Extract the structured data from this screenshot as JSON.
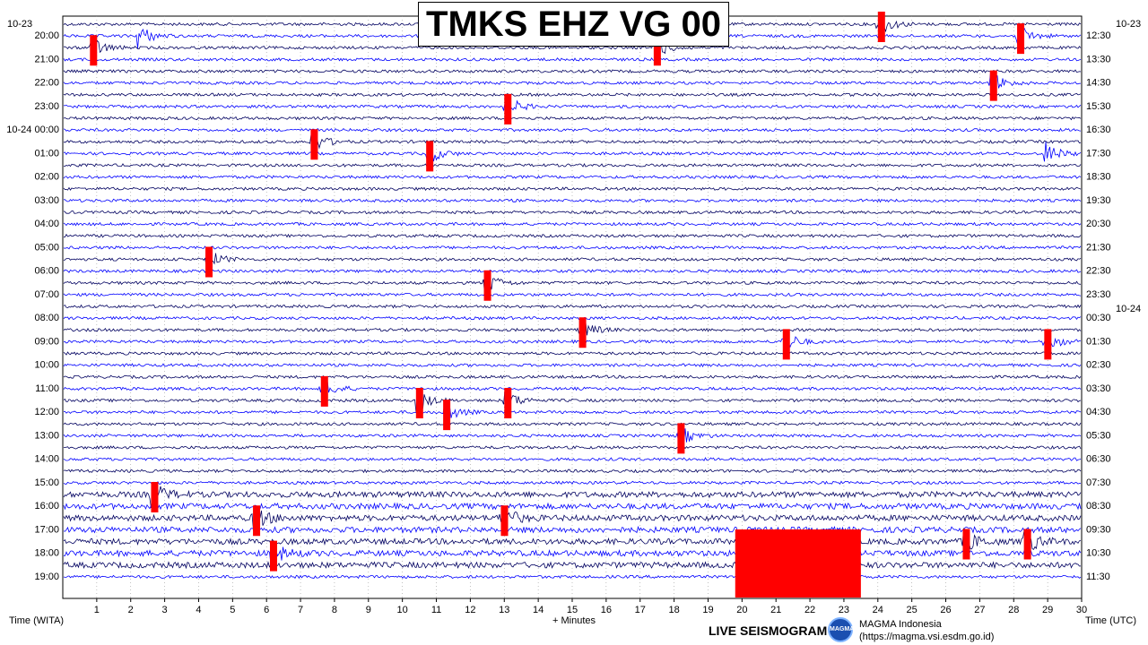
{
  "title": "TMKS EHZ VG 00",
  "left_axis_label": "Time (WITA)",
  "right_axis_label": "Time (UTC)",
  "bottom_axis_label": "+ Minutes",
  "footer": {
    "brand": "LIVE SEISMOGRAM",
    "logo_text": "MAGMA",
    "org": "MAGMA Indonesia",
    "url": "(https://magma.vsi.esdm.go.id)"
  },
  "colors": {
    "trace_a": "#000060",
    "trace_b": "#0000ff",
    "clip": "#ff0000"
  },
  "chart_data": {
    "type": "seismogram",
    "x_ticks": [
      1,
      2,
      3,
      4,
      5,
      6,
      7,
      8,
      9,
      10,
      11,
      12,
      13,
      14,
      15,
      16,
      17,
      18,
      19,
      20,
      21,
      22,
      23,
      24,
      25,
      26,
      27,
      28,
      29,
      30
    ],
    "xlim": [
      0,
      30
    ],
    "left_date_start": "10-23",
    "left_date_mid_label": "10-24 00:00",
    "left_hour_labels": [
      "20:00",
      "21:00",
      "22:00",
      "23:00",
      "10-24 00:00",
      "01:00",
      "02:00",
      "03:00",
      "04:00",
      "05:00",
      "06:00",
      "07:00",
      "08:00",
      "09:00",
      "10:00",
      "11:00",
      "12:00",
      "13:00",
      "14:00",
      "15:00",
      "16:00",
      "17:00",
      "18:00",
      "19:00"
    ],
    "right_date_start": "10-23",
    "right_date_mid": "10-24",
    "right_hour_labels": [
      "12:30",
      "13:30",
      "14:30",
      "15:30",
      "16:30",
      "17:30",
      "18:30",
      "19:30",
      "20:30",
      "21:30",
      "22:30",
      "23:30",
      "00:30",
      "01:30",
      "02:30",
      "03:30",
      "04:30",
      "05:30",
      "06:30",
      "07:30",
      "08:30",
      "09:30",
      "10:30",
      "11:30"
    ],
    "events": [
      {
        "row": 2,
        "minute": 0.8,
        "clipped": true
      },
      {
        "row": 1,
        "minute": 2.2,
        "clipped": false
      },
      {
        "row": 10,
        "minute": 7.3,
        "clipped": true
      },
      {
        "row": 11,
        "minute": 10.7,
        "clipped": true
      },
      {
        "row": 7,
        "minute": 13.0,
        "clipped": true
      },
      {
        "row": 2,
        "minute": 17.4,
        "clipped": true
      },
      {
        "row": 0,
        "minute": 24.0,
        "clipped": true
      },
      {
        "row": 1,
        "minute": 28.1,
        "clipped": true
      },
      {
        "row": 5,
        "minute": 27.3,
        "clipped": true
      },
      {
        "row": 11,
        "minute": 28.9,
        "clipped": false
      },
      {
        "row": 20,
        "minute": 4.2,
        "clipped": true
      },
      {
        "row": 22,
        "minute": 12.4,
        "clipped": true
      },
      {
        "row": 26,
        "minute": 15.2,
        "clipped": true
      },
      {
        "row": 27,
        "minute": 21.2,
        "clipped": true
      },
      {
        "row": 27,
        "minute": 28.9,
        "clipped": true
      },
      {
        "row": 31,
        "minute": 7.6,
        "clipped": true
      },
      {
        "row": 32,
        "minute": 10.4,
        "clipped": true
      },
      {
        "row": 33,
        "minute": 11.2,
        "clipped": true
      },
      {
        "row": 32,
        "minute": 13.0,
        "clipped": true
      },
      {
        "row": 35,
        "minute": 18.1,
        "clipped": true
      },
      {
        "row": 40,
        "minute": 2.6,
        "clipped": true
      },
      {
        "row": 42,
        "minute": 5.6,
        "clipped": true
      },
      {
        "row": 42,
        "minute": 12.9,
        "clipped": true
      },
      {
        "row": 45,
        "minute": 6.1,
        "clipped": true
      },
      {
        "row": 44,
        "minute": 26.5,
        "clipped": true
      },
      {
        "row": 44,
        "minute": 28.3,
        "clipped": true
      }
    ]
  }
}
